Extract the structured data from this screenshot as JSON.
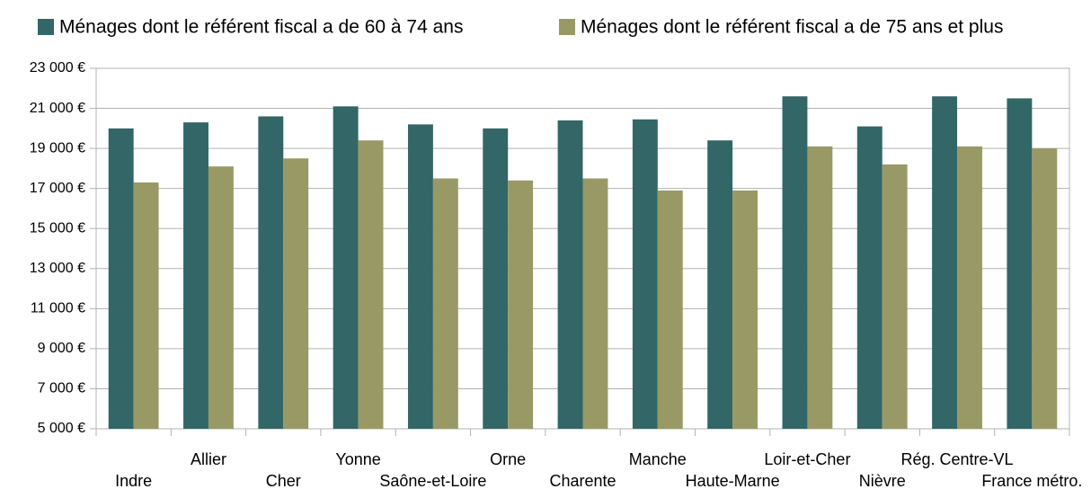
{
  "chart_data": {
    "type": "bar",
    "categories": [
      "Indre",
      "Allier",
      "Cher",
      "Yonne",
      "Saône-et-Loire",
      "Orne",
      "Charente",
      "Manche",
      "Haute-Marne",
      "Loir-et-Cher",
      "Nièvre",
      "Rég. Centre-VL",
      "France métro."
    ],
    "series": [
      {
        "name": "Ménages dont le référent fiscal a de 60 à 74 ans",
        "color": "#336666",
        "values": [
          20000,
          20300,
          20600,
          21100,
          20200,
          20000,
          20400,
          20450,
          19400,
          21600,
          20100,
          21600,
          21500
        ]
      },
      {
        "name": "Ménages dont le référent fiscal a de 75 ans et plus",
        "color": "#999966",
        "values": [
          17300,
          18100,
          18500,
          19400,
          17500,
          17400,
          17500,
          16900,
          16900,
          19100,
          18200,
          19100,
          19000
        ]
      }
    ],
    "ylim": [
      5000,
      23000
    ],
    "yticks": [
      {
        "value": 5000,
        "label": "5 000 €"
      },
      {
        "value": 7000,
        "label": "7 000 €"
      },
      {
        "value": 9000,
        "label": "9 000 €"
      },
      {
        "value": 11000,
        "label": "11 000 €"
      },
      {
        "value": 13000,
        "label": "13 000 €"
      },
      {
        "value": 15000,
        "label": "15 000 €"
      },
      {
        "value": 17000,
        "label": "17 000 €"
      },
      {
        "value": 19000,
        "label": "19 000 €"
      },
      {
        "value": 21000,
        "label": "21 000 €"
      },
      {
        "value": 23000,
        "label": "23 000 €"
      }
    ],
    "grid": true,
    "legend": "top"
  }
}
